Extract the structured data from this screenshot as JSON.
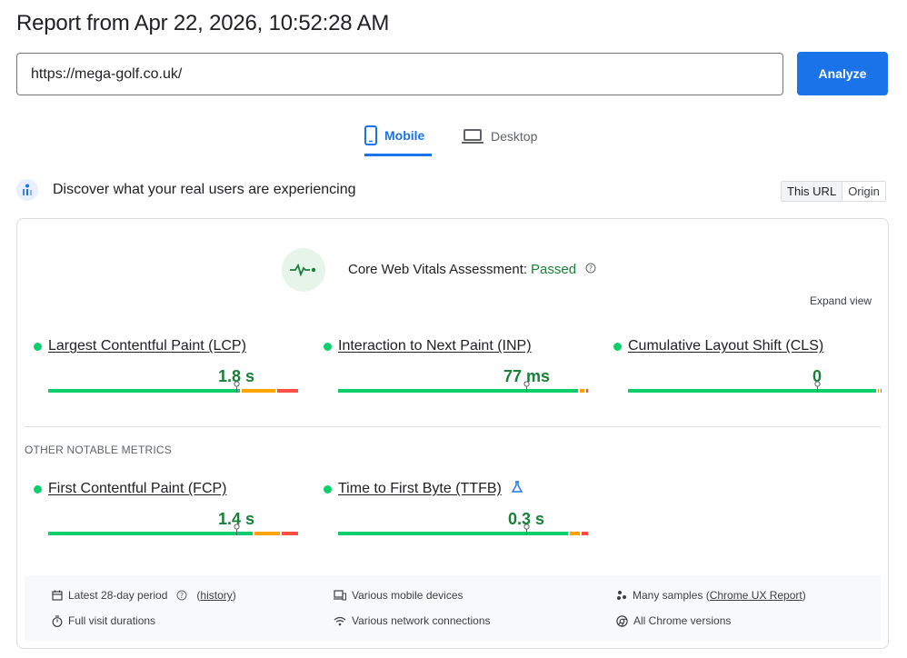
{
  "header": {
    "title": "Report from Apr 22, 2026, 10:52:28 AM"
  },
  "search": {
    "value": "https://mega-golf.co.uk/",
    "analyze_label": "Analyze"
  },
  "tabs": [
    {
      "label": "Mobile",
      "active": true,
      "icon": "smartphone-icon"
    },
    {
      "label": "Desktop",
      "active": false,
      "icon": "laptop-icon"
    }
  ],
  "real_users": {
    "text": "Discover what your real users are experiencing",
    "toggle": [
      {
        "label": "This URL",
        "active": true
      },
      {
        "label": "Origin",
        "active": false
      }
    ]
  },
  "assessment": {
    "label": "Core Web Vitals Assessment:",
    "status": "Passed",
    "expand_label": "Expand view"
  },
  "core_metrics": [
    {
      "name": "Largest Contentful Paint (LCP)",
      "value": "1.8 s",
      "good_pct": 0.77,
      "marker_pct": 0.75
    },
    {
      "name": "Interaction to Next Paint (INP)",
      "value": "77 ms",
      "good_pct": 0.96,
      "marker_pct": 0.75
    },
    {
      "name": "Cumulative Layout Shift (CLS)",
      "value": "0",
      "good_pct": 0.99,
      "marker_pct": 0.75
    }
  ],
  "other_metrics_label": "OTHER NOTABLE METRICS",
  "other_metrics": [
    {
      "name": "First Contentful Paint (FCP)",
      "value": "1.4 s",
      "good_pct": 0.82,
      "marker_pct": 0.75
    },
    {
      "name": "Time to First Byte (TTFB)",
      "value": "0.3 s",
      "good_pct": 0.92,
      "marker_pct": 0.75
    }
  ],
  "footer": {
    "period": "Latest 28-day period",
    "history_link": "history",
    "devices": "Various mobile devices",
    "samples_prefix": "Many samples (",
    "samples_link": "Chrome UX Report",
    "samples_suffix": ")",
    "durations": "Full visit durations",
    "network": "Various network connections",
    "chrome": "All Chrome versions"
  },
  "colors": {
    "accent": "#1a73e8",
    "good": "#0cce6b",
    "needs_improvement": "#ffa400",
    "poor": "#ff4e42",
    "passed_text": "#188038"
  }
}
